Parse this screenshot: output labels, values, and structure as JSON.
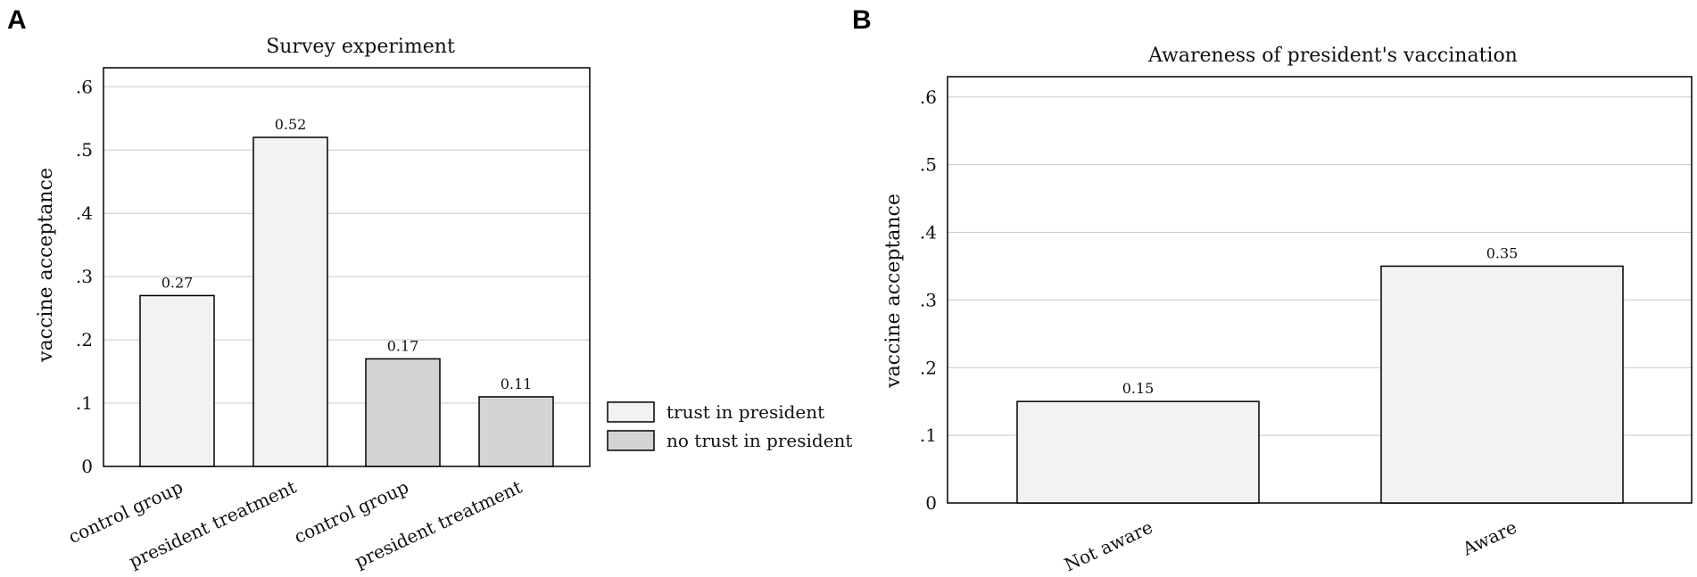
{
  "panels": [
    {
      "letter": "A"
    },
    {
      "letter": "B"
    }
  ],
  "chart_data": [
    {
      "type": "bar",
      "title": "Survey experiment",
      "xlabel": "",
      "ylabel": "vaccine acceptance",
      "ylim": [
        0,
        0.63
      ],
      "yticks": [
        {
          "value": 0,
          "label": "0"
        },
        {
          "value": 0.1,
          "label": ".1"
        },
        {
          "value": 0.2,
          "label": ".2"
        },
        {
          "value": 0.3,
          "label": ".3"
        },
        {
          "value": 0.4,
          "label": ".4"
        },
        {
          "value": 0.5,
          "label": ".5"
        },
        {
          "value": 0.6,
          "label": ".6"
        }
      ],
      "grid": true,
      "categories": [
        "control group",
        "president treatment",
        "control group",
        "president treatment"
      ],
      "values": [
        0.27,
        0.52,
        0.17,
        0.11
      ],
      "value_labels": [
        "0.27",
        "0.52",
        "0.17",
        "0.11"
      ],
      "bar_groups": [
        0,
        0,
        1,
        1
      ],
      "legend": {
        "placement": "right",
        "entries": [
          {
            "label": "trust in president",
            "color": "#f2f2f2"
          },
          {
            "label": "no trust in president",
            "color": "#d4d4d4"
          }
        ]
      }
    },
    {
      "type": "bar",
      "title": "Awareness of president's vaccination",
      "xlabel": "",
      "ylabel": "vaccine acceptance",
      "ylim": [
        0,
        0.63
      ],
      "yticks": [
        {
          "value": 0,
          "label": "0"
        },
        {
          "value": 0.1,
          "label": ".1"
        },
        {
          "value": 0.2,
          "label": ".2"
        },
        {
          "value": 0.3,
          "label": ".3"
        },
        {
          "value": 0.4,
          "label": ".4"
        },
        {
          "value": 0.5,
          "label": ".5"
        },
        {
          "value": 0.6,
          "label": ".6"
        }
      ],
      "grid": true,
      "categories": [
        "Not aware",
        "Aware"
      ],
      "values": [
        0.15,
        0.35
      ],
      "value_labels": [
        "0.15",
        "0.35"
      ],
      "bar_color": "#f2f2f2"
    }
  ]
}
